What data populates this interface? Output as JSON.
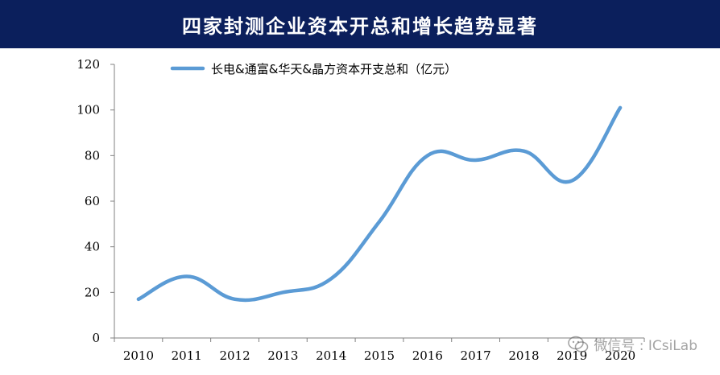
{
  "header": {
    "title": "四家封测企业资本开总和增长趋势显著"
  },
  "watermark": {
    "text": "微信号 : ICsiLab"
  },
  "colors": {
    "banner": "#0b1f5c",
    "line": "#5b9bd5",
    "axis": "#808080"
  },
  "chart_data": {
    "type": "line",
    "title": "",
    "xlabel": "",
    "ylabel": "",
    "categories": [
      "2010",
      "2011",
      "2012",
      "2013",
      "2014",
      "2015",
      "2016",
      "2017",
      "2018",
      "2019",
      "2020"
    ],
    "ylim": [
      0,
      120
    ],
    "yticks": [
      0,
      20,
      40,
      60,
      80,
      100,
      120
    ],
    "grid": false,
    "legend_position": "top",
    "series": [
      {
        "name": "长电&通富&华天&晶方资本开支总和（亿元）",
        "values": [
          17,
          27,
          17,
          20,
          26,
          51,
          80,
          78,
          82,
          69,
          101
        ],
        "smooth": true,
        "color": "#5b9bd5"
      }
    ]
  }
}
